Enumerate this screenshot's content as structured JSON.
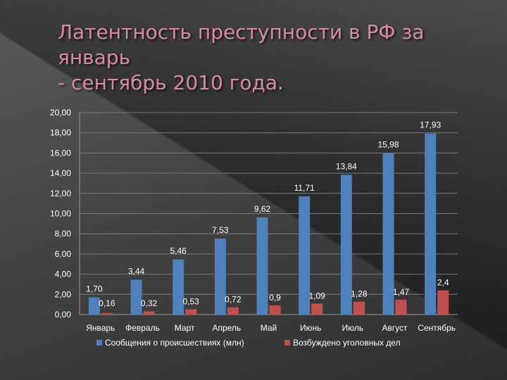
{
  "slide": {
    "title_line1": "Латентность преступности в РФ за январь",
    "title_line2": "- сентябрь 2010 года."
  },
  "colors": {
    "series1": "#4f81bd",
    "series2": "#c0504d",
    "title": "#d98aa6"
  },
  "chart_data": {
    "type": "bar",
    "categories": [
      "Январь",
      "Февраль",
      "Март",
      "Апрель",
      "Май",
      "Июнь",
      "Июль",
      "Август",
      "Сентябрь"
    ],
    "series": [
      {
        "name": "Сообщения о происшествиях (млн)",
        "values": [
          1.7,
          3.44,
          5.46,
          7.53,
          9.62,
          11.71,
          13.84,
          15.98,
          17.93
        ],
        "labels": [
          "1,70",
          "3,44",
          "5,46",
          "7,53",
          "9,62",
          "11,71",
          "13,84",
          "15,98",
          "17,93"
        ]
      },
      {
        "name": "Возбуждено уголовных дел",
        "values": [
          0.16,
          0.32,
          0.53,
          0.72,
          0.9,
          1.09,
          1.28,
          1.47,
          2.4
        ],
        "labels": [
          "0,16",
          "0,32",
          "0,53",
          "0,72",
          "0,9",
          "1,09",
          "1,28",
          "1,47",
          "2,4"
        ]
      }
    ],
    "yticks": [
      "0,00",
      "2,00",
      "4,00",
      "6,00",
      "8,00",
      "10,00",
      "12,00",
      "14,00",
      "16,00",
      "18,00",
      "20,00"
    ],
    "ylim": [
      0,
      20
    ],
    "grid": true,
    "legend": "bottom"
  }
}
